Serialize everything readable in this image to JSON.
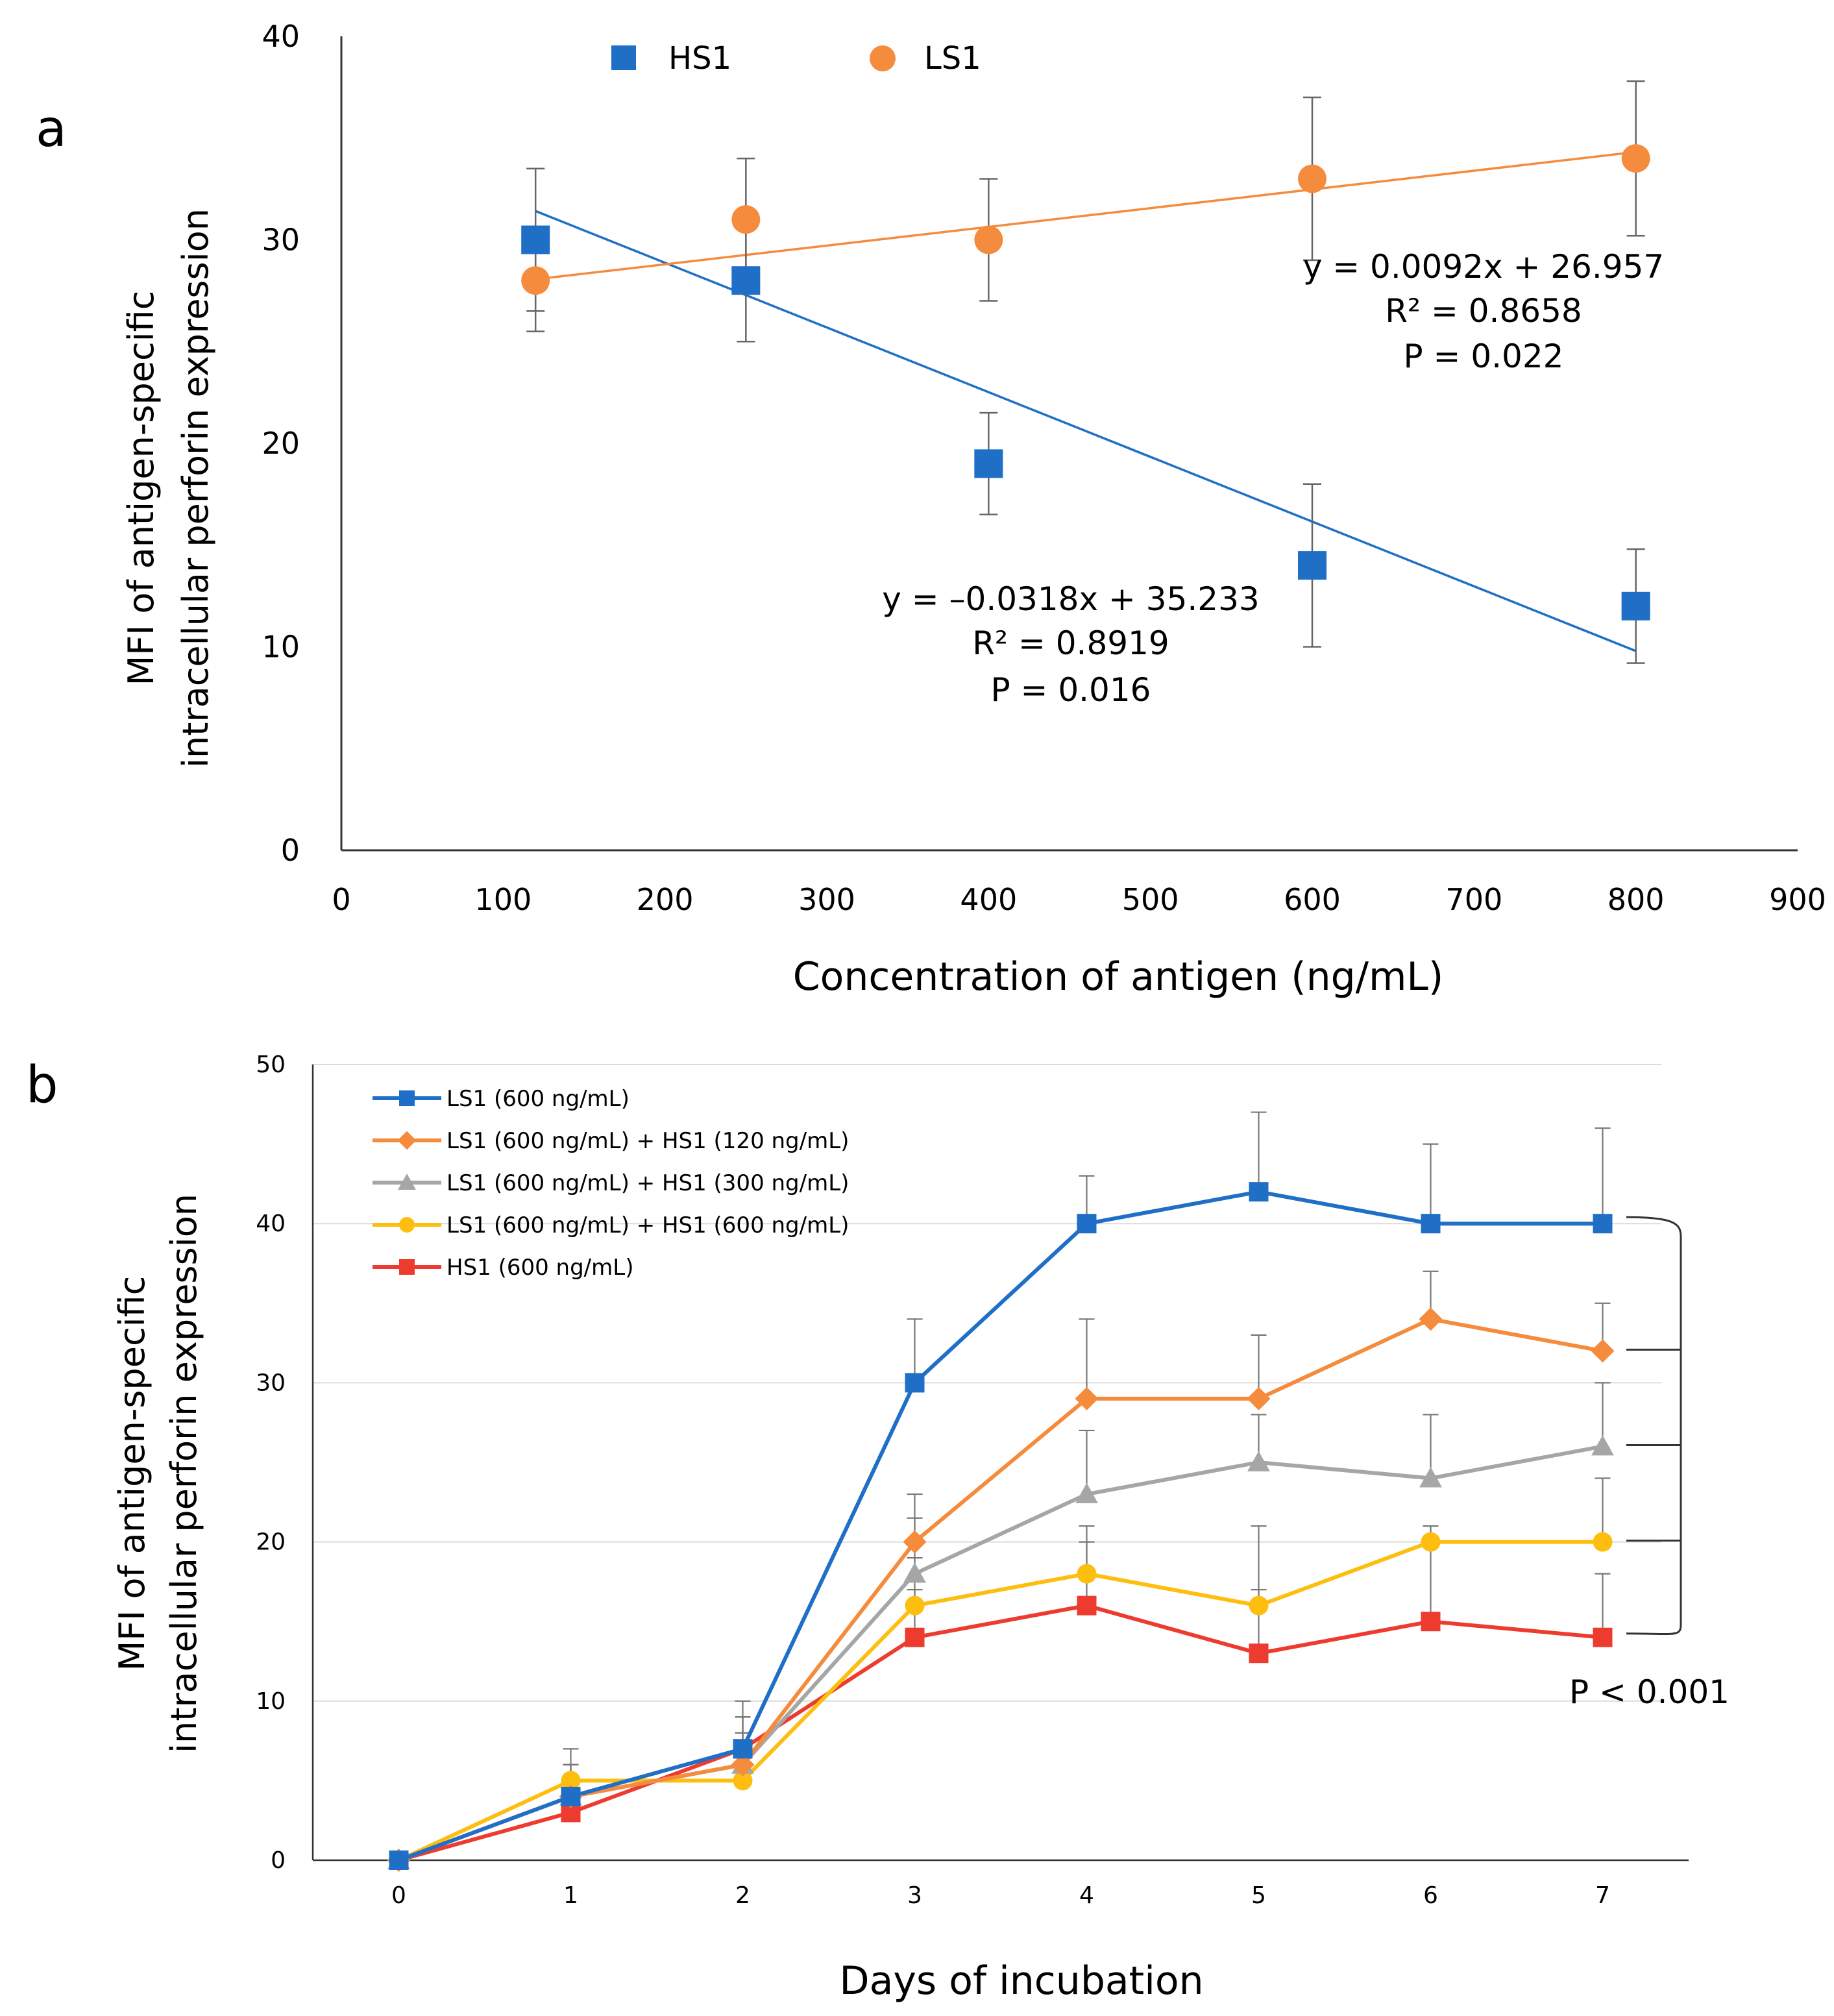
{
  "chart_data": [
    {
      "panel": "a",
      "type": "scatter",
      "xlabel": "Concentration of antigen (ng/mL)",
      "ylabel": [
        "MFI of antigen-specific",
        "intracellular perforin expression"
      ],
      "xlim": [
        0,
        900
      ],
      "ylim": [
        0,
        40
      ],
      "xticks": [
        0,
        100,
        200,
        300,
        400,
        500,
        600,
        700,
        800,
        900
      ],
      "yticks": [
        0,
        10,
        20,
        30,
        40
      ],
      "grid": false,
      "legend_position": "top",
      "series": [
        {
          "name": "HS1",
          "color": "#1f6fc7",
          "marker": "square",
          "x": [
            120,
            250,
            400,
            600,
            800
          ],
          "y": [
            30,
            28,
            19,
            14,
            12
          ],
          "err": [
            3.5,
            3,
            2.5,
            4,
            2.8
          ],
          "trend": {
            "slope": -0.0318,
            "intercept": 35.233
          },
          "annotation": [
            "y = –0.0318x + 35.233",
            "R² = 0.8919",
            "P = 0.016"
          ]
        },
        {
          "name": "LS1",
          "color": "#f58b3c",
          "marker": "circle",
          "x": [
            120,
            250,
            400,
            600,
            800
          ],
          "y": [
            28,
            31,
            30,
            33,
            34
          ],
          "err": [
            2.5,
            3,
            3,
            4,
            3.8
          ],
          "trend": {
            "slope": 0.0092,
            "intercept": 26.957
          },
          "annotation": [
            "y = 0.0092x + 26.957",
            "R² = 0.8658",
            "P = 0.022"
          ]
        }
      ]
    },
    {
      "panel": "b",
      "type": "line",
      "xlabel": "Days of incubation",
      "ylabel": [
        "MFI of antigen-specific",
        "intracellular perforin expression"
      ],
      "x": [
        0,
        1,
        2,
        3,
        4,
        5,
        6,
        7
      ],
      "xlim": [
        -0.5,
        7.5
      ],
      "ylim": [
        0,
        50
      ],
      "yticks": [
        0,
        10,
        20,
        30,
        40,
        50
      ],
      "grid": true,
      "legend_position": "top-left",
      "significance": "P < 0.001",
      "series": [
        {
          "name": "LS1 (600 ng/mL)",
          "color": "#1f6fc7",
          "marker": "square",
          "values": [
            0,
            4,
            7,
            30,
            40,
            42,
            40,
            40
          ],
          "err": [
            0,
            2,
            3,
            4,
            3,
            5,
            5,
            6
          ]
        },
        {
          "name": "LS1 (600 ng/mL) + HS1 (120 ng/mL)",
          "color": "#f58b3c",
          "marker": "diamond",
          "values": [
            0,
            4,
            6,
            20,
            29,
            29,
            34,
            32
          ],
          "err": [
            0,
            2,
            3,
            3,
            5,
            4,
            3,
            3
          ]
        },
        {
          "name": "LS1 (600 ng/mL) + HS1 (300 ng/mL)",
          "color": "#a6a6a6",
          "marker": "triangle",
          "values": [
            0,
            4,
            6,
            18,
            23,
            25,
            24,
            26
          ],
          "err": [
            0,
            2,
            3,
            3.5,
            4,
            3,
            4,
            4
          ]
        },
        {
          "name": "LS1 (600 ng/mL) + HS1 (600 ng/mL)",
          "color": "#fdbe10",
          "marker": "circle",
          "values": [
            0,
            5,
            5,
            16,
            18,
            16,
            20,
            20
          ],
          "err": [
            0,
            2,
            3,
            3,
            3,
            5,
            1,
            4
          ]
        },
        {
          "name": "HS1 (600 ng/mL)",
          "color": "#ee3b2f",
          "marker": "square",
          "values": [
            0,
            3,
            7,
            14,
            16,
            13,
            15,
            14
          ],
          "err": [
            0,
            2,
            2,
            3,
            4,
            4,
            6,
            4
          ]
        }
      ]
    }
  ]
}
